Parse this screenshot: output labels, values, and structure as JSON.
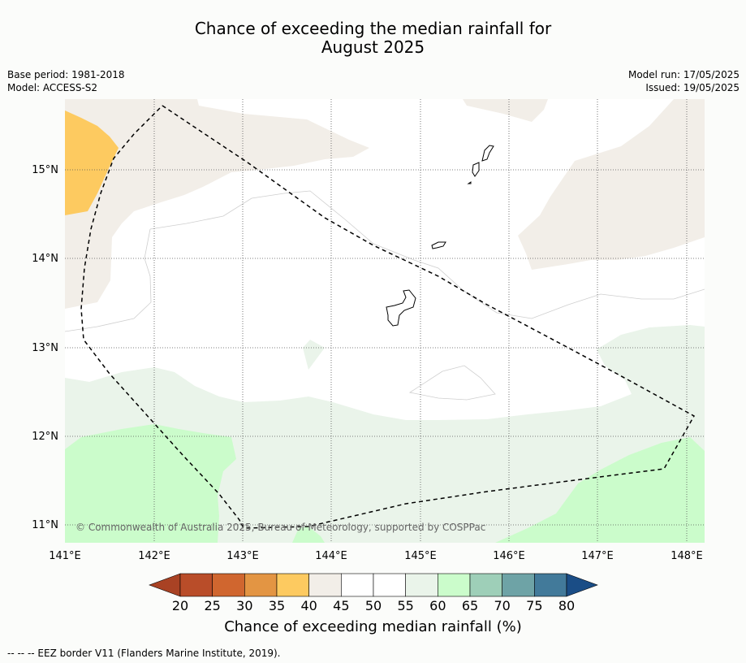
{
  "title_line1": "Chance of exceeding the median rainfall for",
  "title_line2": "August 2025",
  "info": {
    "base_period": "Base period: 1981-2018",
    "model": "Model: ACCESS-S2",
    "model_run": "Model run: 17/05/2025",
    "issued": "Issued: 19/05/2025"
  },
  "copyright": "© Commonwealth of Australia 2025, Bureau of Meteorology, supported by COSPPac",
  "lon_ticks": [
    "141°E",
    "142°E",
    "143°E",
    "144°E",
    "145°E",
    "146°E",
    "147°E",
    "148°E"
  ],
  "lat_ticks": [
    "15°N",
    "14°N",
    "13°N",
    "12°N",
    "11°N"
  ],
  "colorbar": {
    "title": "Chance of exceeding median rainfall (%)",
    "ticks": [
      "20",
      "25",
      "30",
      "35",
      "40",
      "45",
      "50",
      "55",
      "60",
      "65",
      "70",
      "75",
      "80"
    ],
    "colors": [
      "#a94224",
      "#b94d29",
      "#d0662f",
      "#e39543",
      "#fdca60",
      "#f2eee8",
      "#ffffff",
      "#ffffff",
      "#eaf4ea",
      "#cbfccb",
      "#9ecfb8",
      "#6ea3a6",
      "#427a9a",
      "#1a4d86"
    ]
  },
  "footer": "--  --  -- EEZ border V11 (Flanders Marine Institute, 2019).",
  "colors": {
    "background": "#fbfcfa",
    "land_outline": "#000000"
  }
}
